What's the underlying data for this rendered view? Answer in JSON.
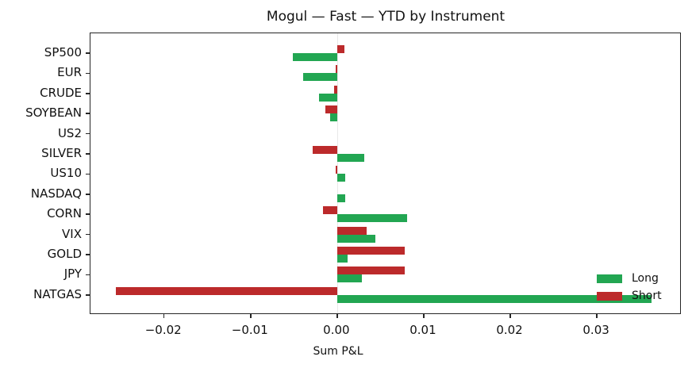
{
  "chart_data": {
    "type": "bar",
    "orientation": "horizontal",
    "title": "Mogul — Fast — YTD by Instrument",
    "xlabel": "Sum P&L",
    "ylabel": "",
    "xlim": [
      -0.0285,
      0.0398
    ],
    "xticks": [
      -0.02,
      -0.01,
      0.0,
      0.01,
      0.02,
      0.03
    ],
    "xtick_labels": [
      "−0.02",
      "−0.01",
      "0.00",
      "0.01",
      "0.02",
      "0.03"
    ],
    "grid": false,
    "legend_position": "lower right",
    "categories": [
      "SP500",
      "EUR",
      "CRUDE",
      "SOYBEAN",
      "US2",
      "SILVER",
      "US10",
      "NASDAQ",
      "CORN",
      "VIX",
      "GOLD",
      "JPY",
      "NATGAS"
    ],
    "series": [
      {
        "name": "Long",
        "color": "#22a652",
        "values": [
          -0.0051,
          -0.0039,
          -0.0021,
          -0.0008,
          0.0,
          0.0031,
          0.0009,
          0.0009,
          0.0081,
          0.0044,
          0.0012,
          0.0029,
          0.0363
        ]
      },
      {
        "name": "Short",
        "color": "#bc2a2b",
        "values": [
          0.0008,
          -0.0002,
          -0.0004,
          -0.0014,
          0.0,
          -0.0028,
          -0.0002,
          0.0,
          -0.0016,
          0.0034,
          0.0078,
          0.0078,
          -0.0256
        ]
      }
    ]
  },
  "legend": {
    "long_label": "Long",
    "short_label": "Short"
  }
}
